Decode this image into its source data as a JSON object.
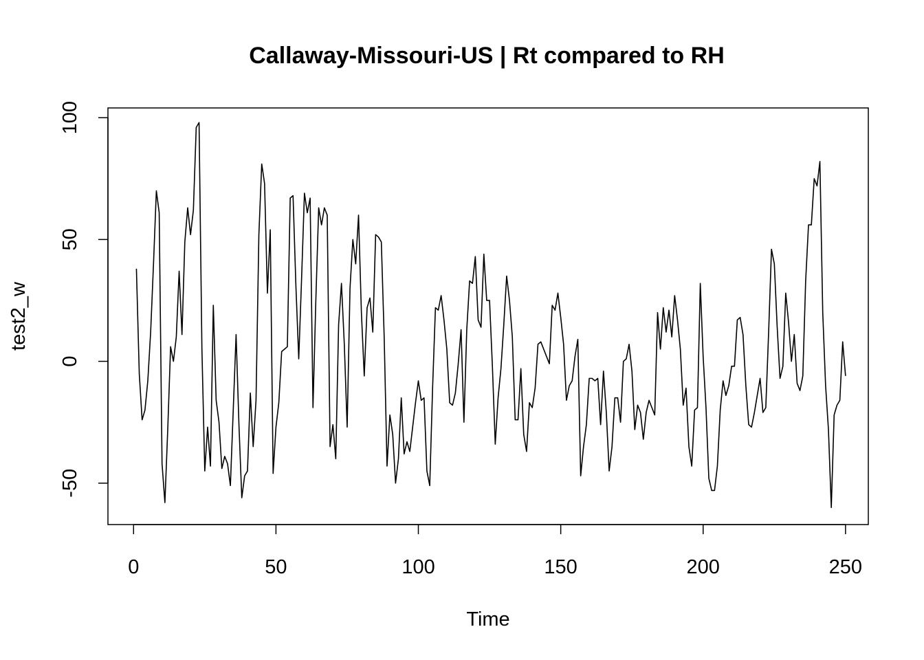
{
  "chart_data": {
    "type": "line",
    "title": "Callaway-Missouri-US | Rt compared to RH",
    "xlabel": "Time",
    "ylabel": "test2_w",
    "xlim": [
      -9,
      258
    ],
    "ylim": [
      -67,
      104
    ],
    "x_ticks": [
      {
        "value": 0,
        "label": "0"
      },
      {
        "value": 50,
        "label": "50"
      },
      {
        "value": 100,
        "label": "100"
      },
      {
        "value": 150,
        "label": "150"
      },
      {
        "value": 200,
        "label": "200"
      },
      {
        "value": 250,
        "label": "250"
      }
    ],
    "y_ticks": [
      {
        "value": -50,
        "label": "-50"
      },
      {
        "value": 0,
        "label": "0"
      },
      {
        "value": 50,
        "label": "50"
      },
      {
        "value": 100,
        "label": "100"
      }
    ],
    "grid": false,
    "series": [
      {
        "color": "#000000",
        "x_start": 1,
        "x_step": 1,
        "values": [
          38,
          -5,
          -24,
          -20,
          -8,
          12,
          40,
          70,
          61,
          -42,
          -58,
          -28,
          6,
          0,
          10,
          37,
          11,
          49,
          63,
          52,
          62,
          96,
          98,
          5,
          -45,
          -27,
          -43,
          23,
          -16,
          -25,
          -44,
          -39,
          -42,
          -51,
          -20,
          11,
          -26,
          -56,
          -47,
          -45,
          -13,
          -35,
          -16,
          52,
          81,
          73,
          28,
          54,
          -46,
          -27,
          -17,
          4,
          5,
          6,
          67,
          68,
          31,
          1,
          34,
          69,
          61,
          67,
          -19,
          25,
          63,
          56,
          63,
          60,
          -35,
          -26,
          -40,
          15,
          32,
          7,
          -27,
          30,
          50,
          40,
          60,
          20,
          -6,
          22,
          26,
          12,
          52,
          51,
          49,
          10,
          -43,
          -22,
          -30,
          -50,
          -40,
          -15,
          -38,
          -33,
          -37,
          -27,
          -17,
          -8,
          -16,
          -15,
          -45,
          -51,
          -11,
          22,
          21,
          27,
          17,
          5,
          -17,
          -18,
          -13,
          -1,
          13,
          -25,
          13,
          33,
          32,
          43,
          17,
          14,
          44,
          25,
          25,
          -2,
          -34,
          -15,
          -3,
          15,
          35,
          25,
          10,
          -24,
          -24,
          -3,
          -30,
          -37,
          -17,
          -19,
          -11,
          7,
          8,
          5,
          2,
          -1,
          23,
          21,
          28,
          18,
          7,
          -16,
          -10,
          -8,
          2,
          9,
          -47,
          -35,
          -26,
          -7,
          -7,
          -8,
          -7,
          -26,
          -4,
          -21,
          -45,
          -35,
          -15,
          -15,
          -25,
          0,
          1,
          7,
          -4,
          -28,
          -18,
          -21,
          -32,
          -21,
          -16,
          -19,
          -22,
          20,
          5,
          22,
          12,
          21,
          10,
          27,
          17,
          5,
          -18,
          -11,
          -35,
          -43,
          -20,
          -19,
          32,
          2,
          -19,
          -48,
          -53,
          -53,
          -43,
          -20,
          -8,
          -14,
          -10,
          -2,
          -2,
          17,
          18,
          11,
          -10,
          -26,
          -27,
          -21,
          -14,
          -7,
          -21,
          -19,
          12,
          46,
          40,
          14,
          -7,
          -2,
          28,
          16,
          0,
          11,
          -9,
          -12,
          -6,
          33,
          56,
          56,
          75,
          72,
          82,
          20,
          -10,
          -28,
          -60,
          -22,
          -18,
          -16,
          8,
          -6
        ]
      }
    ]
  }
}
